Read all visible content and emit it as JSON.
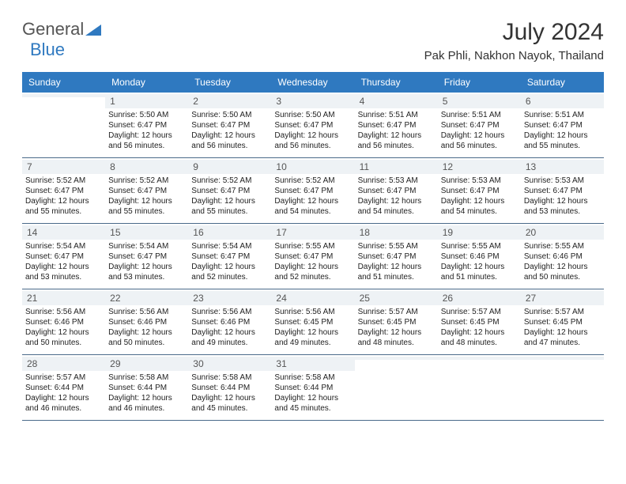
{
  "logo": {
    "text1": "General",
    "text2": "Blue"
  },
  "title": "July 2024",
  "location": "Pak Phli, Nakhon Nayok, Thailand",
  "colors": {
    "header_bg": "#2f79c0",
    "header_text": "#ffffff",
    "daynum_bg": "#eef2f5",
    "border": "#4a6a8a",
    "text": "#222222"
  },
  "day_names": [
    "Sunday",
    "Monday",
    "Tuesday",
    "Wednesday",
    "Thursday",
    "Friday",
    "Saturday"
  ],
  "weeks": [
    [
      {
        "n": "",
        "sr": "",
        "ss": "",
        "dl": ""
      },
      {
        "n": "1",
        "sr": "5:50 AM",
        "ss": "6:47 PM",
        "dl": "12 hours and 56 minutes."
      },
      {
        "n": "2",
        "sr": "5:50 AM",
        "ss": "6:47 PM",
        "dl": "12 hours and 56 minutes."
      },
      {
        "n": "3",
        "sr": "5:50 AM",
        "ss": "6:47 PM",
        "dl": "12 hours and 56 minutes."
      },
      {
        "n": "4",
        "sr": "5:51 AM",
        "ss": "6:47 PM",
        "dl": "12 hours and 56 minutes."
      },
      {
        "n": "5",
        "sr": "5:51 AM",
        "ss": "6:47 PM",
        "dl": "12 hours and 56 minutes."
      },
      {
        "n": "6",
        "sr": "5:51 AM",
        "ss": "6:47 PM",
        "dl": "12 hours and 55 minutes."
      }
    ],
    [
      {
        "n": "7",
        "sr": "5:52 AM",
        "ss": "6:47 PM",
        "dl": "12 hours and 55 minutes."
      },
      {
        "n": "8",
        "sr": "5:52 AM",
        "ss": "6:47 PM",
        "dl": "12 hours and 55 minutes."
      },
      {
        "n": "9",
        "sr": "5:52 AM",
        "ss": "6:47 PM",
        "dl": "12 hours and 55 minutes."
      },
      {
        "n": "10",
        "sr": "5:52 AM",
        "ss": "6:47 PM",
        "dl": "12 hours and 54 minutes."
      },
      {
        "n": "11",
        "sr": "5:53 AM",
        "ss": "6:47 PM",
        "dl": "12 hours and 54 minutes."
      },
      {
        "n": "12",
        "sr": "5:53 AM",
        "ss": "6:47 PM",
        "dl": "12 hours and 54 minutes."
      },
      {
        "n": "13",
        "sr": "5:53 AM",
        "ss": "6:47 PM",
        "dl": "12 hours and 53 minutes."
      }
    ],
    [
      {
        "n": "14",
        "sr": "5:54 AM",
        "ss": "6:47 PM",
        "dl": "12 hours and 53 minutes."
      },
      {
        "n": "15",
        "sr": "5:54 AM",
        "ss": "6:47 PM",
        "dl": "12 hours and 53 minutes."
      },
      {
        "n": "16",
        "sr": "5:54 AM",
        "ss": "6:47 PM",
        "dl": "12 hours and 52 minutes."
      },
      {
        "n": "17",
        "sr": "5:55 AM",
        "ss": "6:47 PM",
        "dl": "12 hours and 52 minutes."
      },
      {
        "n": "18",
        "sr": "5:55 AM",
        "ss": "6:47 PM",
        "dl": "12 hours and 51 minutes."
      },
      {
        "n": "19",
        "sr": "5:55 AM",
        "ss": "6:46 PM",
        "dl": "12 hours and 51 minutes."
      },
      {
        "n": "20",
        "sr": "5:55 AM",
        "ss": "6:46 PM",
        "dl": "12 hours and 50 minutes."
      }
    ],
    [
      {
        "n": "21",
        "sr": "5:56 AM",
        "ss": "6:46 PM",
        "dl": "12 hours and 50 minutes."
      },
      {
        "n": "22",
        "sr": "5:56 AM",
        "ss": "6:46 PM",
        "dl": "12 hours and 50 minutes."
      },
      {
        "n": "23",
        "sr": "5:56 AM",
        "ss": "6:46 PM",
        "dl": "12 hours and 49 minutes."
      },
      {
        "n": "24",
        "sr": "5:56 AM",
        "ss": "6:45 PM",
        "dl": "12 hours and 49 minutes."
      },
      {
        "n": "25",
        "sr": "5:57 AM",
        "ss": "6:45 PM",
        "dl": "12 hours and 48 minutes."
      },
      {
        "n": "26",
        "sr": "5:57 AM",
        "ss": "6:45 PM",
        "dl": "12 hours and 48 minutes."
      },
      {
        "n": "27",
        "sr": "5:57 AM",
        "ss": "6:45 PM",
        "dl": "12 hours and 47 minutes."
      }
    ],
    [
      {
        "n": "28",
        "sr": "5:57 AM",
        "ss": "6:44 PM",
        "dl": "12 hours and 46 minutes."
      },
      {
        "n": "29",
        "sr": "5:58 AM",
        "ss": "6:44 PM",
        "dl": "12 hours and 46 minutes."
      },
      {
        "n": "30",
        "sr": "5:58 AM",
        "ss": "6:44 PM",
        "dl": "12 hours and 45 minutes."
      },
      {
        "n": "31",
        "sr": "5:58 AM",
        "ss": "6:44 PM",
        "dl": "12 hours and 45 minutes."
      },
      {
        "n": "",
        "sr": "",
        "ss": "",
        "dl": ""
      },
      {
        "n": "",
        "sr": "",
        "ss": "",
        "dl": ""
      },
      {
        "n": "",
        "sr": "",
        "ss": "",
        "dl": ""
      }
    ]
  ],
  "labels": {
    "sunrise": "Sunrise:",
    "sunset": "Sunset:",
    "daylight": "Daylight:"
  }
}
